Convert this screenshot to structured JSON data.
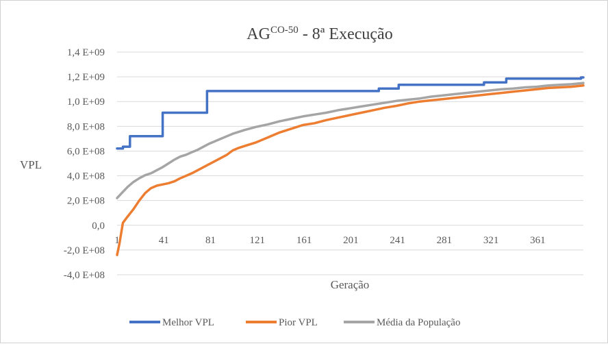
{
  "chart_data": {
    "type": "line",
    "title": {
      "main": "AG",
      "superscript": "CO-50",
      "rest": " - 8ª Execução"
    },
    "xlabel": "Geração",
    "ylabel": "VPL",
    "xlim": [
      1,
      400
    ],
    "ylim": [
      -400000000,
      1400000000
    ],
    "x_ticks": [
      1,
      41,
      81,
      121,
      161,
      201,
      241,
      281,
      321,
      361
    ],
    "x_tick_labels": [
      "1",
      "41",
      "81",
      "121",
      "161",
      "201",
      "241",
      "281",
      "321",
      "361"
    ],
    "y_ticks": [
      -400000000,
      -200000000,
      0,
      200000000,
      400000000,
      600000000,
      800000000,
      1000000000,
      1200000000,
      1400000000
    ],
    "y_tick_labels": [
      "-4,0 E+08",
      "-2,0 E+08",
      "0,0",
      "2,0 E+08",
      "4,0 E+08",
      "6,0 E+08",
      "8,0 E+08",
      "1,0 E+09",
      "1,2 E+09",
      "1,4 E+09"
    ],
    "grid": true,
    "legend_position": "bottom",
    "series": [
      {
        "name": "Melhor VPL",
        "color": "#4472C4",
        "step": true,
        "x": [
          1,
          6,
          12,
          40,
          78,
          225,
          242,
          315,
          334,
          398,
          400
        ],
        "y": [
          620000000,
          635000000,
          720000000,
          910000000,
          1085000000,
          1105000000,
          1135000000,
          1155000000,
          1185000000,
          1195000000,
          1195000000
        ]
      },
      {
        "name": "Pior VPL",
        "color": "#ED7D31",
        "x": [
          1,
          3,
          6,
          10,
          15,
          20,
          25,
          30,
          35,
          40,
          45,
          50,
          55,
          60,
          65,
          70,
          75,
          80,
          85,
          90,
          95,
          100,
          105,
          110,
          120,
          130,
          140,
          150,
          160,
          170,
          180,
          190,
          200,
          210,
          220,
          230,
          240,
          250,
          260,
          270,
          280,
          290,
          300,
          310,
          320,
          330,
          340,
          350,
          360,
          370,
          380,
          390,
          400
        ],
        "y": [
          -240000000,
          -150000000,
          20000000,
          70000000,
          130000000,
          200000000,
          260000000,
          300000000,
          320000000,
          330000000,
          340000000,
          355000000,
          380000000,
          400000000,
          420000000,
          445000000,
          470000000,
          495000000,
          520000000,
          545000000,
          570000000,
          605000000,
          625000000,
          640000000,
          670000000,
          710000000,
          750000000,
          780000000,
          810000000,
          825000000,
          850000000,
          870000000,
          890000000,
          910000000,
          930000000,
          950000000,
          965000000,
          985000000,
          1000000000,
          1010000000,
          1020000000,
          1030000000,
          1040000000,
          1050000000,
          1060000000,
          1070000000,
          1080000000,
          1090000000,
          1100000000,
          1110000000,
          1115000000,
          1120000000,
          1130000000
        ]
      },
      {
        "name": "Média da População",
        "color": "#A5A5A5",
        "x": [
          1,
          5,
          10,
          15,
          20,
          25,
          30,
          35,
          40,
          45,
          50,
          55,
          60,
          65,
          70,
          75,
          80,
          85,
          90,
          95,
          100,
          110,
          120,
          130,
          140,
          150,
          160,
          170,
          180,
          190,
          200,
          210,
          220,
          230,
          240,
          250,
          260,
          270,
          280,
          290,
          300,
          310,
          320,
          330,
          340,
          350,
          360,
          370,
          380,
          390,
          400
        ],
        "y": [
          220000000,
          260000000,
          310000000,
          350000000,
          380000000,
          405000000,
          420000000,
          445000000,
          470000000,
          500000000,
          530000000,
          555000000,
          570000000,
          590000000,
          610000000,
          635000000,
          660000000,
          680000000,
          700000000,
          720000000,
          740000000,
          770000000,
          795000000,
          815000000,
          840000000,
          860000000,
          880000000,
          895000000,
          910000000,
          930000000,
          945000000,
          960000000,
          975000000,
          990000000,
          1005000000,
          1015000000,
          1025000000,
          1040000000,
          1050000000,
          1060000000,
          1070000000,
          1080000000,
          1090000000,
          1100000000,
          1105000000,
          1115000000,
          1120000000,
          1130000000,
          1135000000,
          1140000000,
          1150000000
        ]
      }
    ]
  }
}
